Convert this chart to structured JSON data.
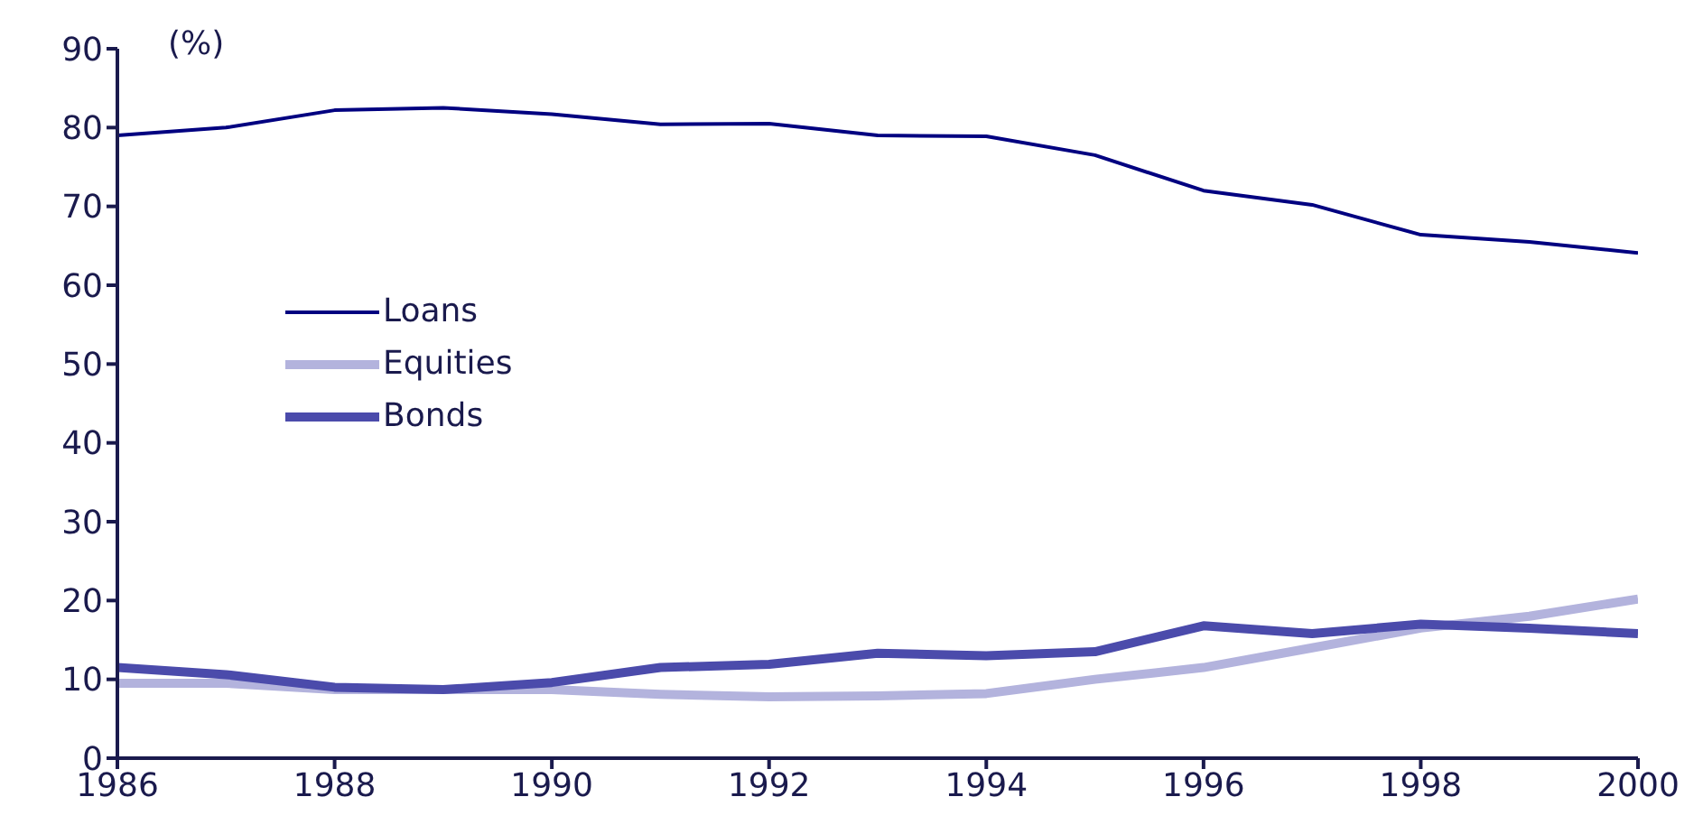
{
  "chart_data": {
    "type": "line",
    "x": [
      1986,
      1987,
      1988,
      1989,
      1990,
      1991,
      1992,
      1993,
      1994,
      1995,
      1996,
      1997,
      1998,
      1999,
      2000
    ],
    "series": [
      {
        "name": "Loans",
        "color": "#000080",
        "values": [
          79,
          80,
          82.2,
          82.5,
          81.7,
          80.4,
          80.5,
          79,
          78.9,
          76.5,
          72,
          70.2,
          66.4,
          65.5,
          64.1
        ]
      },
      {
        "name": "Equities",
        "color": "#b3b3dd",
        "values": [
          9.5,
          9.5,
          8.7,
          8.7,
          8.7,
          8.1,
          7.8,
          7.9,
          8.2,
          10,
          11.5,
          14,
          16.5,
          18,
          20.2
        ]
      },
      {
        "name": "Bonds",
        "color": "#4b4bab",
        "values": [
          11.5,
          10.6,
          9,
          8.7,
          9.6,
          11.5,
          11.9,
          13.3,
          13,
          13.5,
          16.8,
          15.8,
          17,
          16.5,
          15.8
        ]
      }
    ],
    "xlim": [
      1986,
      2000
    ],
    "xticks": [
      1986,
      1988,
      1990,
      1992,
      1994,
      1996,
      1998,
      2000
    ],
    "ylim": [
      0,
      90
    ],
    "yticks": [
      0,
      10,
      20,
      30,
      40,
      50,
      60,
      70,
      80,
      90
    ],
    "annotations": [
      "(%)"
    ],
    "grid": false,
    "legend": "left",
    "marker": "none",
    "line_style": "solid"
  }
}
